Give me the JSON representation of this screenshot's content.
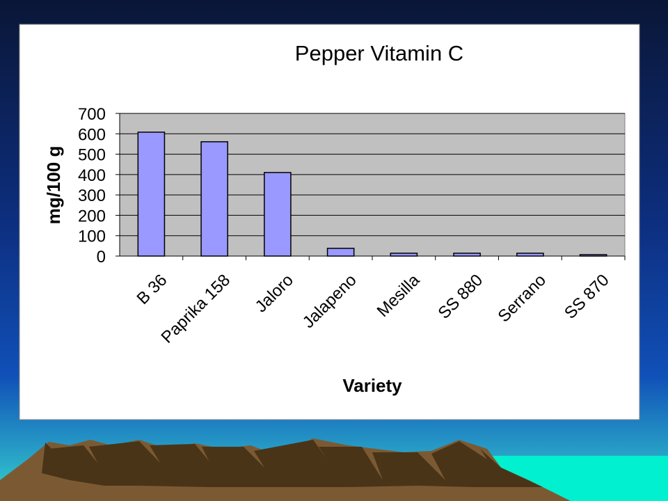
{
  "chart_data": {
    "type": "bar",
    "title": "Pepper Vitamin C",
    "x_label": "Variety",
    "y_label": "mg/100 g",
    "categories": [
      "B 36",
      "Paprika 158",
      "Jaloro",
      "Jalapeno",
      "Mesilla",
      "SS 880",
      "Serrano",
      "SS 870"
    ],
    "values": [
      608,
      561,
      410,
      38,
      14,
      14,
      14,
      7
    ],
    "color": "#9999ff",
    "ylim": [
      0,
      700
    ],
    "yticks": [
      0,
      100,
      200,
      300,
      400,
      500,
      600,
      700
    ],
    "grid": true
  }
}
